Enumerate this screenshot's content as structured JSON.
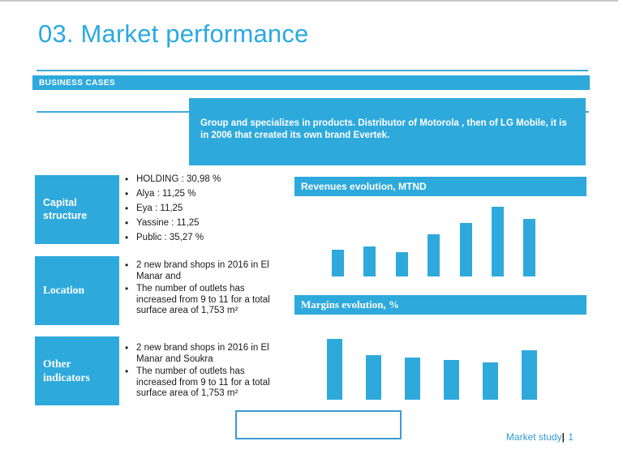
{
  "slide": {
    "title": "03. Market performance",
    "section_banner": "BUSINESS CASES",
    "description": "Group and specializes in products. Distributor of Motorola , then of LG Mobile, it is in 2006 that created its own brand Evertek.",
    "footer": {
      "label": "Market study",
      "separator": "|",
      "page_number": "1"
    }
  },
  "info_rows": [
    {
      "label": "Capital structure",
      "bullets": [
        "HOLDING : 30,98 %",
        "Alya : 11,25 %",
        "Eya : 11,25",
        "Yassine : 11,25",
        "Public : 35,27 %"
      ]
    },
    {
      "label": "Location",
      "bullets": [
        "2 new brand shops in 2016 in El Manar and",
        "The number of outlets has increased from 9 to 11 for a total surface area of 1,753 m²"
      ]
    },
    {
      "label": "Other indicators",
      "bullets": [
        "2 new brand shops in 2016 in El Manar and Soukra",
        "The number of outlets has increased from 9 to 11 for a total surface area of 1,753 m²"
      ]
    }
  ],
  "chart_data": [
    {
      "type": "bar",
      "title": "Revenues evolution, MTND",
      "categories": [
        "",
        "",
        "",
        "",
        "",
        "",
        ""
      ],
      "values": [
        33,
        37,
        30,
        52,
        66,
        86,
        71
      ],
      "xlabel": "",
      "ylabel": "",
      "unit": "MTND",
      "grid": false,
      "legend_position": "none",
      "axis_tick_labels_visible": false,
      "bar_color": "#2ea9dc"
    },
    {
      "type": "bar",
      "title": "Margins evolution, %",
      "categories": [
        "",
        "",
        "",
        "",
        "",
        ""
      ],
      "values": [
        75,
        55,
        52,
        49,
        46,
        61
      ],
      "xlabel": "",
      "ylabel": "",
      "unit": "%",
      "grid": false,
      "legend_position": "none",
      "axis_tick_labels_visible": false,
      "bar_color": "#2ea9dc"
    }
  ],
  "colors": {
    "accent_blue": "#2ea9dc",
    "title_blue": "#29a9e2",
    "footer_blue": "#2e9bd6",
    "outline_box_border": "#3d9bd3"
  }
}
